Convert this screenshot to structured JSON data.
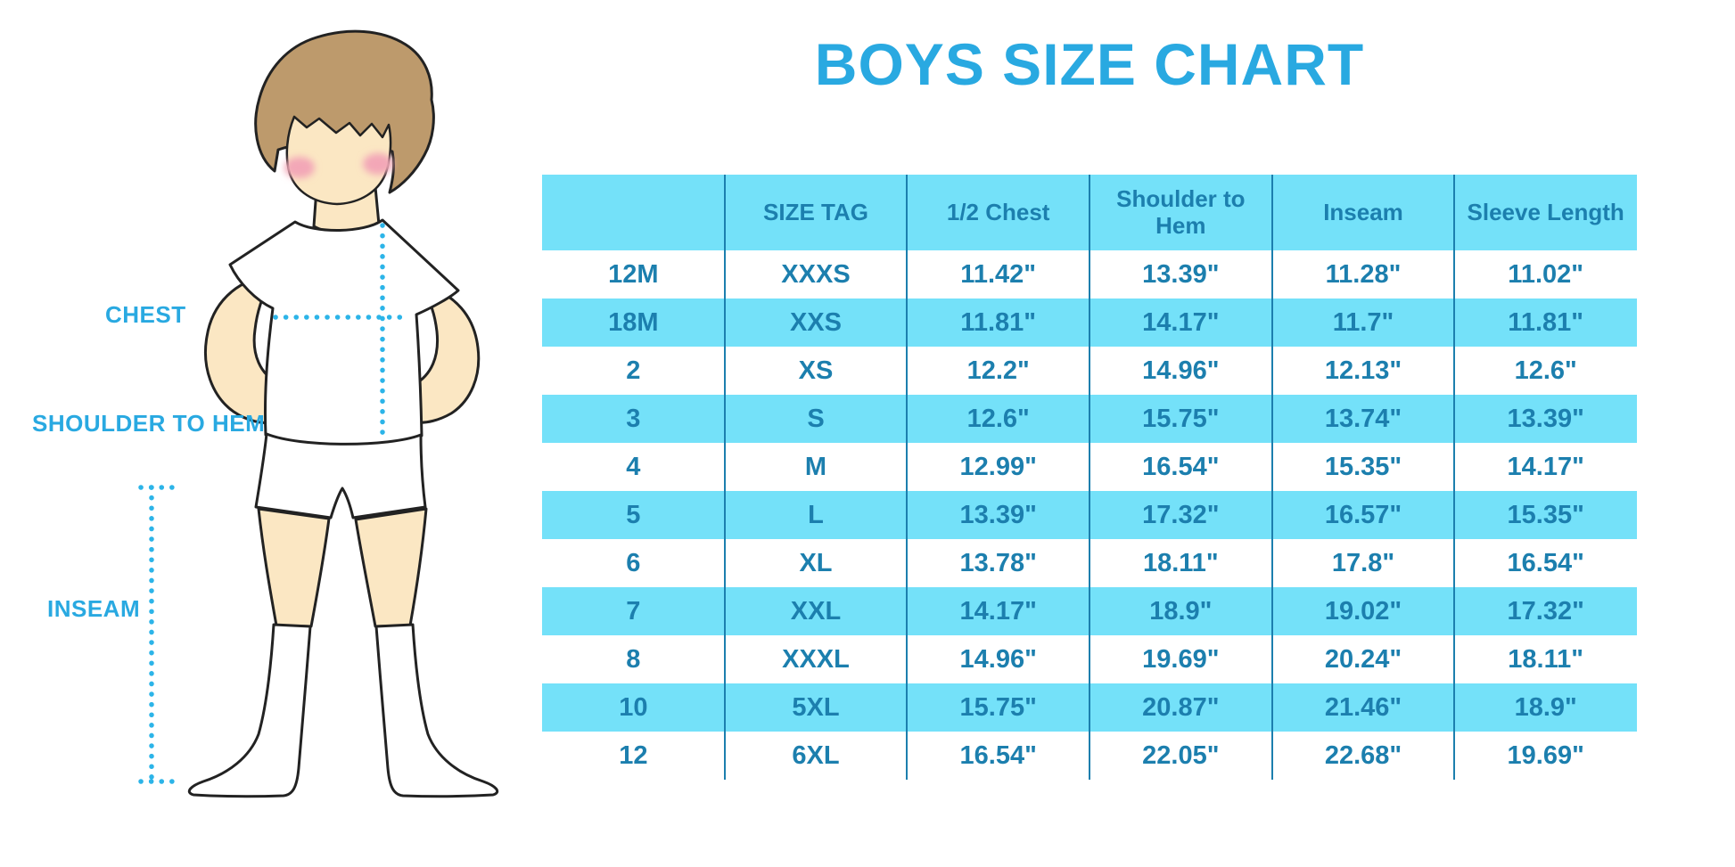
{
  "title": "BOYS SIZE CHART",
  "diagram": {
    "labels": {
      "chest": "CHEST",
      "shoulder_to_hem": "SHOULDER TO HEM",
      "inseam": "INSEAM"
    }
  },
  "chart_data": {
    "type": "table",
    "title": "BOYS SIZE CHART",
    "columns": [
      "",
      "SIZE TAG",
      "1/2 Chest",
      "Shoulder to Hem",
      "Inseam",
      "Sleeve Length"
    ],
    "rows": [
      [
        "12M",
        "XXXS",
        "11.42\"",
        "13.39\"",
        "11.28\"",
        "11.02\""
      ],
      [
        "18M",
        "XXS",
        "11.81\"",
        "14.17\"",
        "11.7\"",
        "11.81\""
      ],
      [
        "2",
        "XS",
        "12.2\"",
        "14.96\"",
        "12.13\"",
        "12.6\""
      ],
      [
        "3",
        "S",
        "12.6\"",
        "15.75\"",
        "13.74\"",
        "13.39\""
      ],
      [
        "4",
        "M",
        "12.99\"",
        "16.54\"",
        "15.35\"",
        "14.17\""
      ],
      [
        "5",
        "L",
        "13.39\"",
        "17.32\"",
        "16.57\"",
        "15.35\""
      ],
      [
        "6",
        "XL",
        "13.78\"",
        "18.11\"",
        "17.8\"",
        "16.54\""
      ],
      [
        "7",
        "XXL",
        "14.17\"",
        "18.9\"",
        "19.02\"",
        "17.32\""
      ],
      [
        "8",
        "XXXL",
        "14.96\"",
        "19.69\"",
        "20.24\"",
        "18.11\""
      ],
      [
        "10",
        "5XL",
        "15.75\"",
        "20.87\"",
        "21.46\"",
        "18.9\""
      ],
      [
        "12",
        "6XL",
        "16.54\"",
        "22.05\"",
        "22.68\"",
        "19.69\""
      ]
    ],
    "striping": "alternating white / cyan rows, cyan header",
    "legend_position": "none",
    "grid": "vertical column dividers only"
  },
  "colors": {
    "accent_blue": "#29a9e1",
    "band_cyan": "#74e1f9",
    "table_text": "#1c7fae",
    "divider": "#1c7fae",
    "dotted_line": "#2cb4e8",
    "skin": "#fbe7c3",
    "hair": "#bd9a6c",
    "cheek": "#f3a7b7",
    "outline": "#222222"
  }
}
